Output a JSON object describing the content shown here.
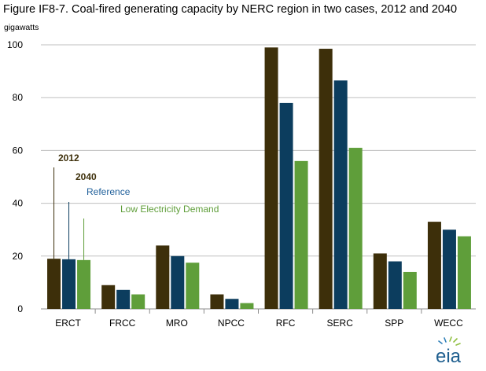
{
  "title": "Figure IF8-7. Coal-fired generating capacity by NERC region in two cases, 2012 and 2040",
  "unit_label": "gigawatts",
  "logo_text": "eia",
  "colors": {
    "s2012": "#3d2f0a",
    "reference": "#0c3d5e",
    "low_demand": "#5f9e3a",
    "grid": "#bfbfbf",
    "axis": "#8c8c8c"
  },
  "chart_data": {
    "type": "bar",
    "title": "Figure IF8-7. Coal-fired generating capacity by NERC region in two cases, 2012 and 2040",
    "ylabel": "gigawatts",
    "xlabel": "",
    "ylim": [
      0,
      100
    ],
    "yticks": [
      0,
      20,
      40,
      60,
      80,
      100
    ],
    "grid": true,
    "categories": [
      "ERCT",
      "FRCC",
      "MRO",
      "NPCC",
      "RFC",
      "SERC",
      "SPP",
      "WECC"
    ],
    "series": [
      {
        "name": "2012",
        "values": [
          19,
          9,
          24,
          5.5,
          99,
          98.5,
          21,
          33
        ]
      },
      {
        "name": "Reference",
        "values": [
          18.8,
          7.2,
          20,
          3.8,
          78,
          86.5,
          18,
          30
        ]
      },
      {
        "name": "Low Electricity Demand",
        "values": [
          18.5,
          5.5,
          17.5,
          2.2,
          56,
          61,
          14,
          27.5
        ]
      }
    ],
    "annotations": {
      "label_2012": "2012",
      "label_2040": "2040",
      "label_reference": "Reference",
      "label_low": "Low Electricity Demand"
    }
  }
}
